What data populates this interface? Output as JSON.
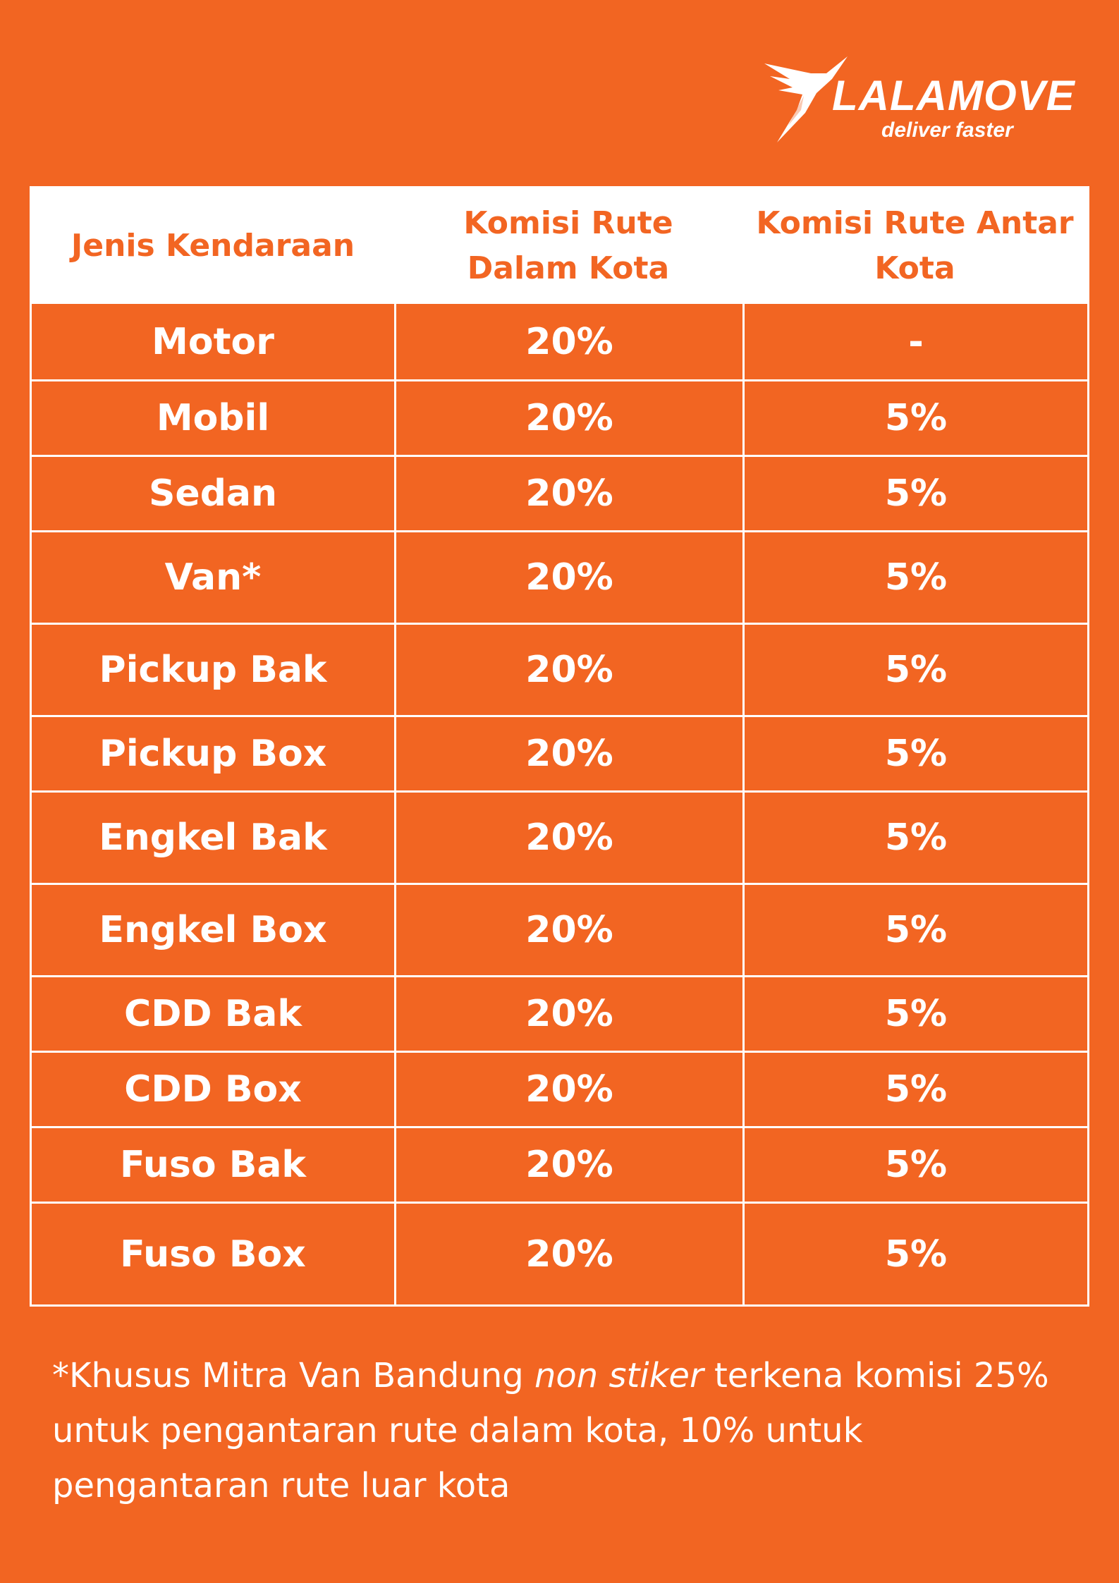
{
  "brand": {
    "name": "LALAMOVE",
    "tagline": "deliver faster",
    "color": "#F26522"
  },
  "table": {
    "headers": [
      "Jenis Kendaraan",
      "Komisi Rute Dalam Kota",
      "Komisi Rute Antar Kota"
    ],
    "rows": [
      {
        "vehicle": "Motor",
        "dalam_kota": "20%",
        "antar_kota": "-"
      },
      {
        "vehicle": "Mobil",
        "dalam_kota": "20%",
        "antar_kota": "5%"
      },
      {
        "vehicle": "Sedan",
        "dalam_kota": "20%",
        "antar_kota": "5%"
      },
      {
        "vehicle": "Van*",
        "dalam_kota": "20%",
        "antar_kota": "5%"
      },
      {
        "vehicle": "Pickup Bak",
        "dalam_kota": "20%",
        "antar_kota": "5%"
      },
      {
        "vehicle": "Pickup Box",
        "dalam_kota": "20%",
        "antar_kota": "5%"
      },
      {
        "vehicle": "Engkel Bak",
        "dalam_kota": "20%",
        "antar_kota": "5%"
      },
      {
        "vehicle": "Engkel Box",
        "dalam_kota": "20%",
        "antar_kota": "5%"
      },
      {
        "vehicle": "CDD Bak",
        "dalam_kota": "20%",
        "antar_kota": "5%"
      },
      {
        "vehicle": "CDD Box",
        "dalam_kota": "20%",
        "antar_kota": "5%"
      },
      {
        "vehicle": "Fuso Bak",
        "dalam_kota": "20%",
        "antar_kota": "5%"
      },
      {
        "vehicle": "Fuso Box",
        "dalam_kota": "20%",
        "antar_kota": "5%"
      }
    ]
  },
  "footnote": {
    "prefix": "*Khusus Mitra Van Bandung ",
    "emphasis": "non stiker",
    "suffix": " terkena komisi 25% untuk pengantaran rute dalam kota, 10% untuk pengantaran rute luar kota"
  }
}
